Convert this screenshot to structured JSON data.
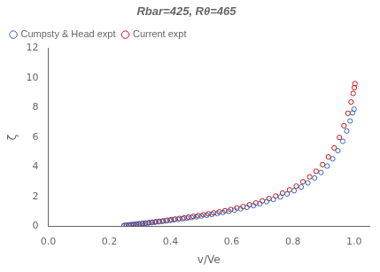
{
  "chart_data": {
    "type": "scatter",
    "title": "Rbar=425, Rθ=465",
    "xlabel": "v/Ve",
    "ylabel": "ζ",
    "xlim": [
      0.0,
      1.05
    ],
    "ylim": [
      0.0,
      12.0
    ],
    "xticks": [
      {
        "value": 0.0,
        "label": "0.0"
      },
      {
        "value": 0.2,
        "label": "0.2"
      },
      {
        "value": 0.4,
        "label": "0.4"
      },
      {
        "value": 0.6,
        "label": "0.6"
      },
      {
        "value": 0.8,
        "label": "0.8"
      },
      {
        "value": 1.0,
        "label": "1.0"
      }
    ],
    "yticks": [
      0,
      2,
      4,
      6,
      8,
      10,
      12
    ],
    "grid": false,
    "legend": "upper left",
    "series": [
      {
        "name": "Cumpsty & Head expt",
        "color": "#3366bb",
        "marker": "circle",
        "x": [
          0.248,
          0.255,
          0.263,
          0.271,
          0.279,
          0.288,
          0.297,
          0.307,
          0.317,
          0.327,
          0.338,
          0.349,
          0.361,
          0.373,
          0.385,
          0.398,
          0.411,
          0.425,
          0.439,
          0.454,
          0.469,
          0.485,
          0.501,
          0.518,
          0.535,
          0.553,
          0.571,
          0.59,
          0.609,
          0.629,
          0.65,
          0.671,
          0.692,
          0.714,
          0.736,
          0.759,
          0.781,
          0.804,
          0.827,
          0.849,
          0.871,
          0.892,
          0.912,
          0.93,
          0.947,
          0.963,
          0.976,
          0.987,
          0.995,
          1.0
        ],
        "values": [
          0.04,
          0.06,
          0.08,
          0.1,
          0.12,
          0.14,
          0.16,
          0.18,
          0.2,
          0.22,
          0.25,
          0.27,
          0.3,
          0.33,
          0.36,
          0.39,
          0.43,
          0.47,
          0.51,
          0.55,
          0.59,
          0.64,
          0.69,
          0.74,
          0.8,
          0.86,
          0.93,
          1.01,
          1.09,
          1.18,
          1.28,
          1.39,
          1.52,
          1.66,
          1.81,
          1.98,
          2.18,
          2.4,
          2.65,
          2.93,
          3.26,
          3.63,
          4.06,
          4.55,
          5.1,
          5.73,
          6.43,
          7.1,
          7.65,
          7.9
        ]
      },
      {
        "name": "Current expt",
        "color": "#cc1111",
        "marker": "circle",
        "x": [
          0.248,
          0.256,
          0.264,
          0.272,
          0.281,
          0.29,
          0.299,
          0.309,
          0.319,
          0.33,
          0.341,
          0.352,
          0.364,
          0.376,
          0.389,
          0.402,
          0.415,
          0.429,
          0.444,
          0.459,
          0.474,
          0.49,
          0.507,
          0.524,
          0.541,
          0.559,
          0.578,
          0.597,
          0.617,
          0.637,
          0.658,
          0.679,
          0.7,
          0.722,
          0.744,
          0.766,
          0.789,
          0.811,
          0.833,
          0.855,
          0.876,
          0.897,
          0.916,
          0.935,
          0.952,
          0.967,
          0.98,
          0.99,
          0.997,
          1.001,
          1.003
        ],
        "values": [
          0.05,
          0.07,
          0.09,
          0.11,
          0.13,
          0.15,
          0.17,
          0.2,
          0.22,
          0.25,
          0.28,
          0.31,
          0.34,
          0.37,
          0.41,
          0.45,
          0.49,
          0.53,
          0.57,
          0.62,
          0.67,
          0.72,
          0.78,
          0.84,
          0.9,
          0.97,
          1.05,
          1.13,
          1.23,
          1.33,
          1.45,
          1.57,
          1.71,
          1.87,
          2.04,
          2.24,
          2.46,
          2.71,
          3.0,
          3.33,
          3.71,
          4.16,
          4.68,
          5.29,
          5.99,
          6.78,
          7.62,
          8.38,
          8.96,
          9.35,
          9.62
        ]
      }
    ]
  }
}
